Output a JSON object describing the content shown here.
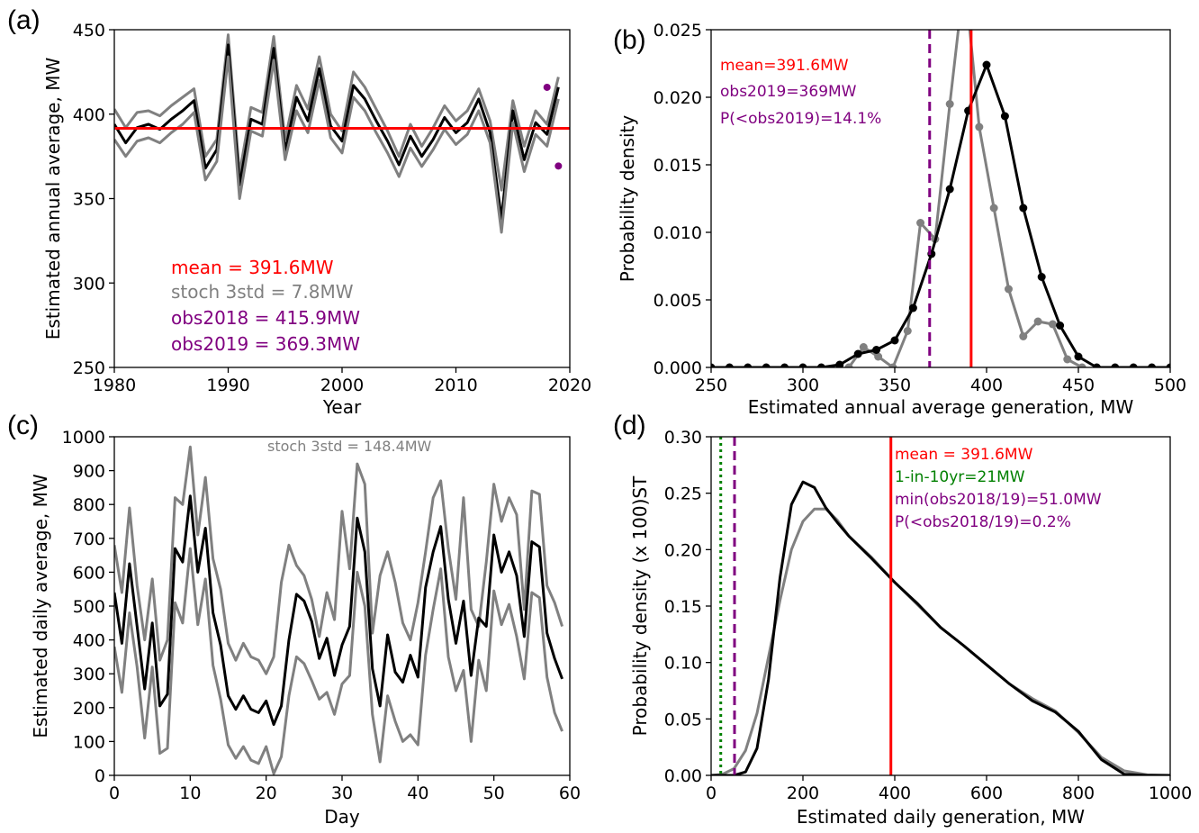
{
  "colors": {
    "mean": "#ff0000",
    "stoch": "#808080",
    "obs": "#800080",
    "main": "#000000",
    "one_in_10": "#008000"
  },
  "chart_data": [
    {
      "id": "a",
      "type": "line",
      "panel_label": "(a)",
      "xlabel": "Year",
      "ylabel": "Estimated annual average, MW",
      "xlim": [
        1980,
        2020
      ],
      "ylim": [
        250,
        450
      ],
      "xticks": [
        1980,
        1990,
        2000,
        2010,
        2020
      ],
      "yticks": [
        250,
        300,
        350,
        400,
        450
      ],
      "x": [
        1980,
        1981,
        1982,
        1983,
        1984,
        1985,
        1986,
        1987,
        1988,
        1989,
        1990,
        1991,
        1992,
        1993,
        1994,
        1995,
        1996,
        1997,
        1998,
        1999,
        2000,
        2001,
        2002,
        2003,
        2004,
        2005,
        2006,
        2007,
        2008,
        2009,
        2010,
        2011,
        2012,
        2013,
        2014,
        2015,
        2016,
        2017,
        2018,
        2019
      ],
      "series": [
        {
          "role": "upper",
          "color": "#808080",
          "values": [
            403,
            392,
            401,
            402,
            399,
            405,
            410,
            415,
            375,
            385,
            447,
            365,
            404,
            401,
            446,
            385,
            417,
            403,
            434,
            400,
            390,
            425,
            416,
            403,
            390,
            375,
            394,
            381,
            392,
            405,
            396,
            402,
            415,
            396,
            355,
            408,
            381,
            402,
            394,
            422
          ]
        },
        {
          "role": "mean",
          "color": "#000000",
          "values": [
            394,
            383,
            392,
            394,
            391,
            397,
            402,
            408,
            368,
            379,
            441,
            358,
            397,
            394,
            439,
            378,
            410,
            396,
            427,
            393,
            384,
            417,
            409,
            396,
            384,
            370,
            387,
            375,
            385,
            398,
            389,
            395,
            409,
            389,
            338,
            402,
            373,
            395,
            388,
            416
          ]
        },
        {
          "role": "lower",
          "color": "#808080",
          "values": [
            385,
            375,
            384,
            386,
            383,
            389,
            394,
            401,
            361,
            372,
            434,
            350,
            390,
            387,
            432,
            373,
            402,
            389,
            420,
            386,
            377,
            410,
            402,
            389,
            377,
            363,
            380,
            369,
            379,
            391,
            382,
            388,
            402,
            383,
            330,
            395,
            366,
            388,
            381,
            409
          ]
        }
      ],
      "hline": 391.6,
      "points": [
        {
          "x": 2018,
          "y": 415.9
        },
        {
          "x": 2019,
          "y": 369.3
        }
      ],
      "annotations": [
        "mean = 391.6MW",
        "stoch 3std = 7.8MW",
        "obs2018 = 415.9MW",
        "obs2019 = 369.3MW"
      ]
    },
    {
      "id": "b",
      "type": "line",
      "panel_label": "(b)",
      "xlabel": "Estimated annual average generation, MW",
      "ylabel": "Probability density",
      "xlim": [
        250,
        500
      ],
      "ylim": [
        0,
        0.025
      ],
      "xticks": [
        250,
        300,
        350,
        400,
        450,
        500
      ],
      "yticks": [
        "0.000",
        "0.005",
        "0.010",
        "0.015",
        "0.020",
        "0.025"
      ],
      "series": [
        {
          "role": "observed",
          "color": "#808080",
          "markers": true,
          "x": [
            325,
            333,
            341,
            349,
            357,
            364,
            372,
            380,
            388,
            396,
            404,
            412,
            420,
            428,
            436,
            444,
            452
          ],
          "values": [
            0.0,
            0.0015,
            0.0008,
            0.0,
            0.0027,
            0.0107,
            0.0095,
            0.0195,
            0.029,
            0.0178,
            0.0118,
            0.0058,
            0.0023,
            0.0034,
            0.0032,
            0.0006,
            0.0
          ]
        },
        {
          "role": "stochastic",
          "color": "#000000",
          "markers": true,
          "x": [
            250,
            260,
            270,
            280,
            290,
            300,
            310,
            320,
            330,
            340,
            350,
            360,
            370,
            380,
            390,
            400,
            410,
            420,
            430,
            440,
            450,
            460,
            470,
            480,
            490,
            500
          ],
          "values": [
            0,
            0,
            0,
            0,
            0,
            0,
            0,
            0.0002,
            0.001,
            0.0013,
            0.002,
            0.0044,
            0.0084,
            0.0132,
            0.019,
            0.0224,
            0.0186,
            0.0118,
            0.0067,
            0.0031,
            0.0008,
            0,
            0,
            0,
            0,
            0
          ]
        }
      ],
      "vlines": [
        {
          "x": 391.6,
          "color": "#ff0000",
          "style": "solid"
        },
        {
          "x": 369,
          "color": "#800080",
          "style": "dashed"
        }
      ],
      "annotations": [
        "mean=391.6MW",
        "obs2019=369MW",
        "P(<obs2019)=14.1%"
      ]
    },
    {
      "id": "c",
      "type": "line",
      "panel_label": "(c)",
      "xlabel": "Day",
      "ylabel": "Estimated daily average, MW",
      "xlim": [
        0,
        60
      ],
      "ylim": [
        0,
        1000
      ],
      "xticks": [
        0,
        10,
        20,
        30,
        40,
        50,
        60
      ],
      "yticks": [
        0,
        100,
        200,
        300,
        400,
        500,
        600,
        700,
        800,
        900,
        1000
      ],
      "x": [
        0,
        1,
        2,
        3,
        4,
        5,
        6,
        7,
        8,
        9,
        10,
        11,
        12,
        13,
        14,
        15,
        16,
        17,
        18,
        19,
        20,
        21,
        22,
        23,
        24,
        25,
        26,
        27,
        28,
        29,
        30,
        31,
        32,
        33,
        34,
        35,
        36,
        37,
        38,
        39,
        40,
        41,
        42,
        43,
        44,
        45,
        46,
        47,
        48,
        49,
        50,
        51,
        52,
        53,
        54,
        55,
        56,
        57,
        58,
        59
      ],
      "series": [
        {
          "role": "upper",
          "color": "#808080",
          "values": [
            680,
            540,
            790,
            560,
            400,
            580,
            340,
            400,
            820,
            800,
            970,
            710,
            880,
            640,
            550,
            390,
            340,
            390,
            350,
            340,
            300,
            350,
            570,
            680,
            620,
            590,
            520,
            410,
            540,
            460,
            780,
            610,
            920,
            860,
            420,
            590,
            660,
            570,
            450,
            400,
            510,
            660,
            820,
            870,
            670,
            520,
            820,
            490,
            440,
            630,
            860,
            750,
            820,
            770,
            490,
            840,
            830,
            560,
            510,
            440
          ]
        },
        {
          "role": "mean",
          "color": "#000000",
          "values": [
            540,
            390,
            625,
            440,
            255,
            450,
            205,
            240,
            670,
            630,
            825,
            600,
            730,
            480,
            385,
            235,
            195,
            235,
            195,
            185,
            220,
            150,
            205,
            400,
            535,
            515,
            455,
            345,
            405,
            295,
            385,
            440,
            760,
            660,
            315,
            205,
            415,
            305,
            275,
            355,
            290,
            555,
            660,
            735,
            520,
            390,
            515,
            295,
            465,
            440,
            710,
            600,
            660,
            590,
            410,
            690,
            675,
            420,
            345,
            285
          ]
        },
        {
          "role": "lower",
          "color": "#808080",
          "values": [
            380,
            245,
            480,
            320,
            110,
            320,
            65,
            80,
            510,
            450,
            670,
            445,
            580,
            325,
            225,
            90,
            50,
            85,
            45,
            35,
            85,
            5,
            55,
            235,
            350,
            330,
            280,
            225,
            245,
            180,
            270,
            295,
            600,
            500,
            180,
            40,
            235,
            160,
            100,
            120,
            90,
            355,
            490,
            610,
            350,
            250,
            310,
            100,
            340,
            250,
            545,
            445,
            505,
            410,
            285,
            540,
            525,
            290,
            185,
            130
          ]
        }
      ],
      "annotations": [
        "stoch 3std = 148.4MW"
      ]
    },
    {
      "id": "d",
      "type": "line",
      "panel_label": "(d)",
      "xlabel": "Estimated daily generation, MW",
      "ylabel": "Probability density (x 100)ST",
      "xlim": [
        0,
        1000
      ],
      "ylim": [
        0,
        0.3
      ],
      "xticks": [
        0,
        200,
        400,
        600,
        800,
        1000
      ],
      "yticks": [
        "0.00",
        "0.05",
        "0.10",
        "0.15",
        "0.20",
        "0.25",
        "0.30"
      ],
      "series": [
        {
          "role": "observed",
          "color": "#808080",
          "x": [
            0,
            25,
            50,
            75,
            100,
            125,
            150,
            175,
            200,
            225,
            250,
            275,
            300,
            350,
            400,
            450,
            500,
            550,
            600,
            650,
            700,
            750,
            800,
            850,
            900,
            950,
            1000
          ],
          "values": [
            0,
            0.001,
            0.006,
            0.022,
            0.055,
            0.105,
            0.155,
            0.2,
            0.225,
            0.236,
            0.236,
            0.226,
            0.212,
            0.193,
            0.171,
            0.151,
            0.131,
            0.115,
            0.098,
            0.081,
            0.068,
            0.057,
            0.038,
            0.016,
            0.004,
            0.0005,
            0
          ]
        },
        {
          "role": "stochastic",
          "color": "#000000",
          "x": [
            0,
            25,
            50,
            75,
            100,
            125,
            150,
            175,
            200,
            225,
            250,
            275,
            300,
            350,
            400,
            450,
            500,
            550,
            600,
            650,
            700,
            750,
            800,
            850,
            900,
            950,
            1000
          ],
          "values": [
            0,
            0,
            0,
            0.003,
            0.024,
            0.085,
            0.175,
            0.24,
            0.26,
            0.255,
            0.237,
            0.224,
            0.212,
            0.192,
            0.171,
            0.152,
            0.131,
            0.115,
            0.098,
            0.081,
            0.066,
            0.056,
            0.039,
            0.014,
            0.001,
            0,
            0
          ]
        }
      ],
      "vlines": [
        {
          "x": 391.6,
          "color": "#ff0000",
          "style": "solid"
        },
        {
          "x": 21,
          "color": "#008000",
          "style": "dotted"
        },
        {
          "x": 51,
          "color": "#800080",
          "style": "dashed"
        }
      ],
      "annotations": [
        "mean = 391.6MW",
        "1-in-10yr=21MW",
        "min(obs2018/19)=51.0MW",
        "P(<obs2018/19)=0.2%"
      ]
    }
  ]
}
